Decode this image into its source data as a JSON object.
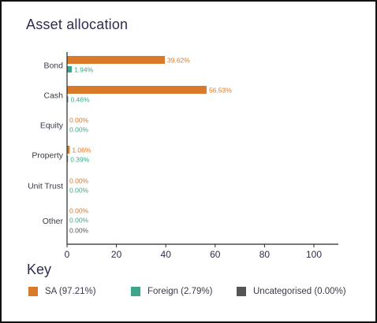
{
  "chart_data": {
    "type": "bar",
    "orientation": "horizontal",
    "title": "Asset allocation",
    "categories": [
      "Bond",
      "Cash",
      "Equity",
      "Property",
      "Unit Trust",
      "Other"
    ],
    "series": [
      {
        "name": "SA (97.21%)",
        "color": "#d9792a",
        "values": [
          39.62,
          56.53,
          0.0,
          1.06,
          0.0,
          0.0
        ],
        "labels": [
          "39.62%",
          "56.53%",
          "0.00%",
          "1.06%",
          "0.00%",
          "0.00%"
        ]
      },
      {
        "name": "Foreign (2.79%)",
        "color": "#3fa58a",
        "values": [
          1.94,
          0.46,
          0.0,
          0.39,
          0.0,
          0.0
        ],
        "labels": [
          "1.94%",
          "0.46%",
          "0.00%",
          "0.39%",
          "0.00%",
          "0.00%"
        ]
      },
      {
        "name": "Uncategorised (0.00%)",
        "color": "#555555",
        "values": [
          null,
          null,
          null,
          null,
          null,
          0.0
        ],
        "labels": [
          null,
          null,
          null,
          null,
          null,
          "0.00%"
        ]
      }
    ],
    "xlim": [
      0,
      100
    ],
    "xticks": [
      0,
      20,
      40,
      60,
      80,
      100
    ],
    "xtick_labels": [
      "0",
      "20",
      "40",
      "60",
      "80",
      "100"
    ],
    "grid": false,
    "legend_title": "Key",
    "legend_position": "bottom"
  }
}
